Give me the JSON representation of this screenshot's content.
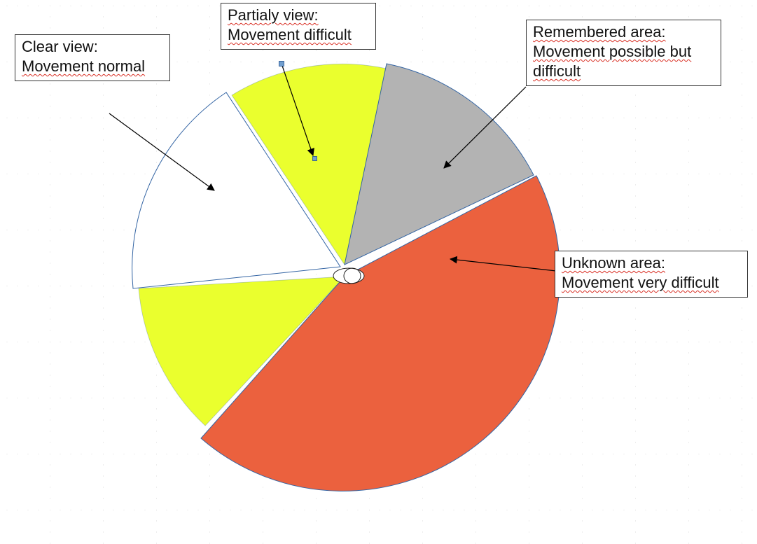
{
  "labels": {
    "clear_view": {
      "line1": "Clear view:",
      "line2": "Movement normal"
    },
    "partial_view": {
      "line1": "Partialy view:",
      "line2": "Movement difficult"
    },
    "remembered_area": {
      "line1": "Remembered area:",
      "line2": "Movement possible but",
      "line3": "difficult"
    },
    "unknown_area": {
      "line1": "Unknown area:",
      "line2": "Movement very difficult"
    }
  },
  "colors": {
    "clear_view": "#ffffff",
    "partial_view": "#eaff2e",
    "remembered_area": "#b3b3b3",
    "unknown_area": "#eb613e",
    "outline": "#3465a4",
    "grid_dot": "#bbbbbb",
    "arrow": "#000000",
    "handle": "#729fcf"
  }
}
